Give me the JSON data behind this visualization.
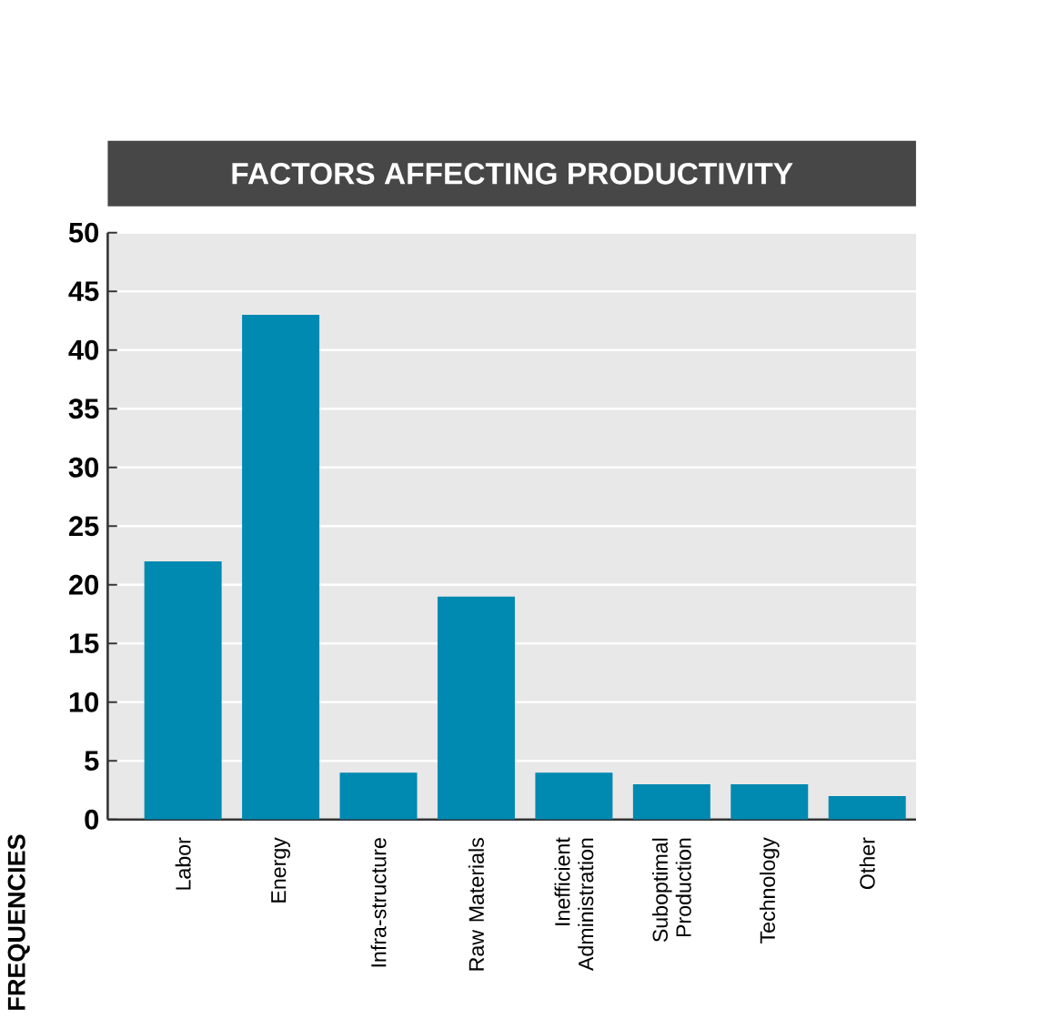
{
  "chart_data": {
    "type": "bar",
    "title": "FACTORS AFFECTING PRODUCTIVITY",
    "ylabel": "FREQUENCIES",
    "categories": [
      "Labor",
      "Energy",
      "Infra-structure",
      "Raw Materials",
      "Inefficient Administration",
      "Suboptimal Production",
      "Technology",
      "Other"
    ],
    "values": [
      22,
      43,
      4,
      19,
      4,
      3,
      3,
      2
    ],
    "color": "#0089b1",
    "ylim": [
      0,
      50
    ],
    "yticks": [
      0,
      5,
      10,
      15,
      20,
      25,
      30,
      35,
      40,
      45,
      50
    ],
    "grid": "y"
  }
}
